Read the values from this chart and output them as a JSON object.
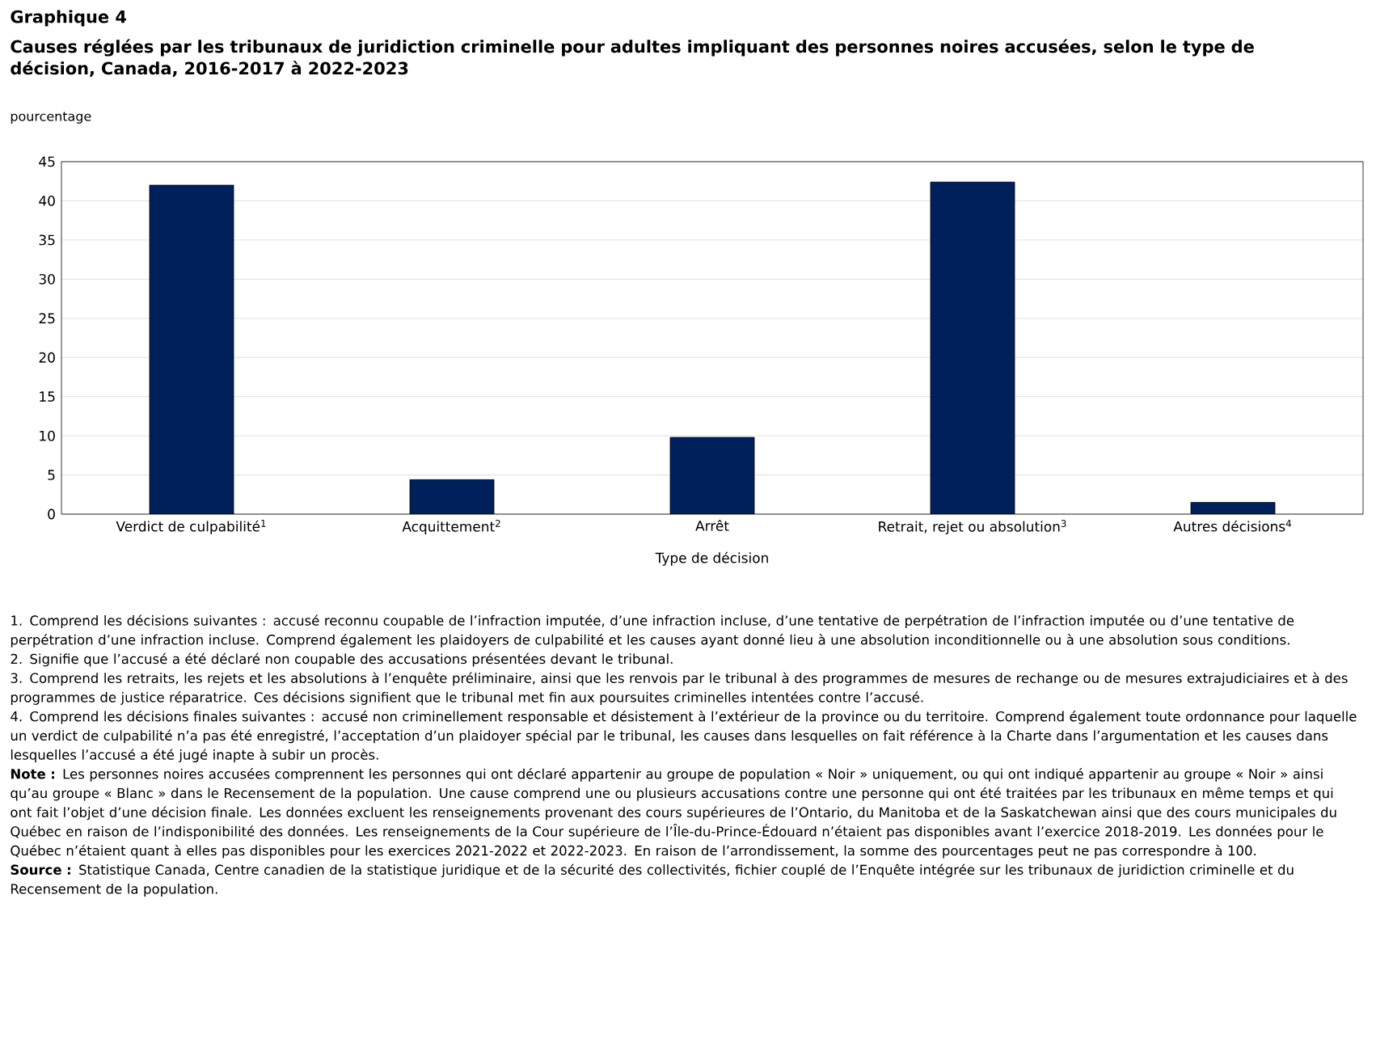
{
  "chart_data": {
    "type": "bar",
    "title": "Graphique 4",
    "subtitle": "Causes réglées par les tribunaux de juridiction criminelle pour adultes impliquant des personnes noires accusées, selon le type de décision, Canada, 2016-2017 à 2022-2023",
    "ylabel": "pourcentage",
    "xlabel": "Type de décision",
    "categories": [
      "Verdict de culpabilité$^{1}$",
      "Acquittement$^{2}$",
      "Arrêt",
      "Retrait, rejet ou absolution$^{3}$",
      "Autres décisions$^{4}$"
    ],
    "values": [
      42.0,
      4.4,
      9.8,
      42.4,
      1.5
    ],
    "color": "#00205b",
    "ylim": [
      0,
      45
    ],
    "yticks": [
      0,
      5,
      10,
      15,
      20,
      25,
      30,
      35,
      40,
      45
    ],
    "grid": "y",
    "annotations": [
      "1. Comprend les décisions suivantes : accusé reconnu coupable de l’infraction imputée, d’une infraction incluse, d’une tentative de perpétration de l’infraction imputée ou d’une tentative de perpétration d’une infraction incluse. Comprend également les plaidoyers de culpabilité et les causes ayant donné lieu à une absolution inconditionnelle ou à une absolution sous conditions.",
      "2. Signifie que l’accusé a été déclaré non coupable des accusations présentées devant le tribunal.",
      "3. Comprend les retraits, les rejets et les absolutions à l’enquête préliminaire, ainsi que les renvois par le tribunal à des programmes de mesures de rechange ou de mesures extrajudiciaires et à des programmes de justice réparatrice. Ces décisions signifient que le tribunal met fin aux poursuites criminelles intentées contre l’accusé.",
      "4. Comprend les décisions finales suivantes : accusé non criminellement responsable et désistement à l’extérieur de la province ou du territoire. Comprend également toute ordonnance pour laquelle un verdict de culpabilité n’a pas été enregistré, l’acceptation d’un plaidoyer spécial par le tribunal, les causes dans lesquelles on fait référence à la Charte dans l’argumentation et les causes dans lesquelles l’accusé a été jugé inapte à subir un procès.",
      "**Note :** Les personnes noires accusées comprennent les personnes qui ont déclaré appartenir au groupe de population « Noir » uniquement, ou qui ont indiqué appartenir au groupe « Noir » ainsi qu’au groupe « Blanc » dans le Recensement de la population. Une cause comprend une ou plusieurs accusations contre une personne qui ont été traitées par les tribunaux en même temps et qui ont fait l’objet d’une décision finale. Les données excluent les renseignements provenant des cours supérieures de l’Ontario, du Manitoba et de la Saskatchewan ainsi que des cours municipales du Québec en raison de l’indisponibilité des données. Les renseignements de la Cour supérieure de l’Île-du-Prince-Édouard n’étaient pas disponibles avant l’exercice 2018-2019. Les données pour le Québec n’étaient quant à elles pas disponibles pour les exercices 2021-2022 et 2022-2023. En raison de l’arrondissement, la somme des pourcentages peut ne pas correspondre à 100.",
      "**Source :** Statistique Canada, Centre canadien de la statistique juridique et de la sécurité des collectivités, fichier couplé de l’Enquête intégrée sur les tribunaux de juridiction criminelle et du Recensement de la population."
    ]
  }
}
